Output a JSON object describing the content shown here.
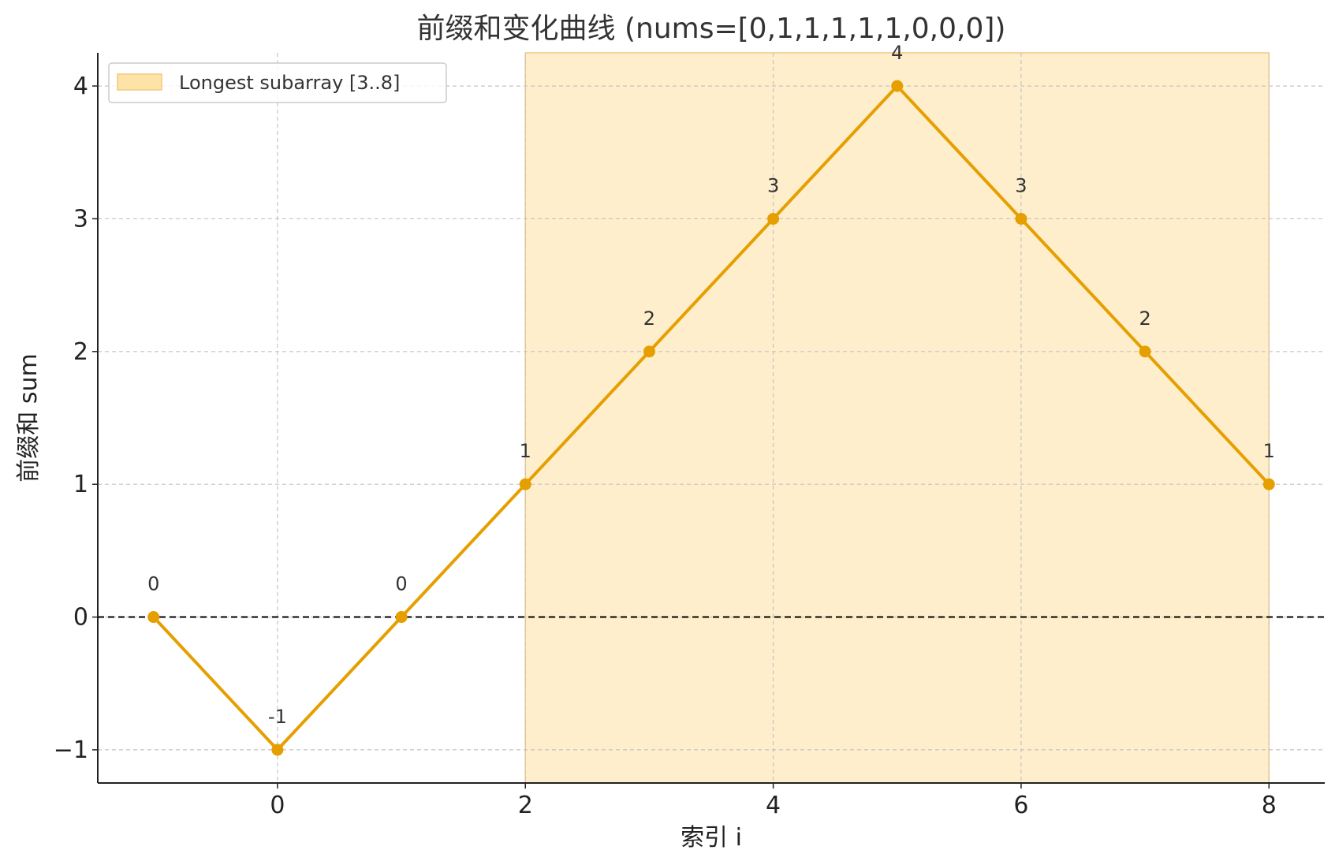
{
  "chart_data": {
    "type": "line",
    "title": "前缀和变化曲线 (nums=[0,1,1,1,1,1,0,0,0])",
    "xlabel": "索引 i",
    "ylabel": "前缀和 sum",
    "xlim": [
      -1.45,
      8.45
    ],
    "ylim": [
      -1.25,
      4.25
    ],
    "x_ticks": [
      0,
      2,
      4,
      6,
      8
    ],
    "y_ticks": [
      -1,
      0,
      1,
      2,
      3,
      4
    ],
    "y_tick_labels": [
      "−1",
      "0",
      "1",
      "2",
      "3",
      "4"
    ],
    "grid": true,
    "reference_line": {
      "y": 0,
      "style": "dashed",
      "color": "#000000"
    },
    "highlight": {
      "label": "Longest subarray [3..8]",
      "x_start": 2,
      "x_end": 8,
      "color": "#fde3a8"
    },
    "legend_position": "top-left",
    "series": [
      {
        "color": "#e69f00",
        "x": [
          -1,
          0,
          1,
          2,
          3,
          4,
          5,
          6,
          7,
          8
        ],
        "y": [
          0,
          -1,
          0,
          1,
          2,
          3,
          4,
          3,
          2,
          1
        ],
        "labels": [
          "0",
          "-1",
          "0",
          "1",
          "2",
          "3",
          "4",
          "3",
          "2",
          "1"
        ]
      }
    ]
  }
}
